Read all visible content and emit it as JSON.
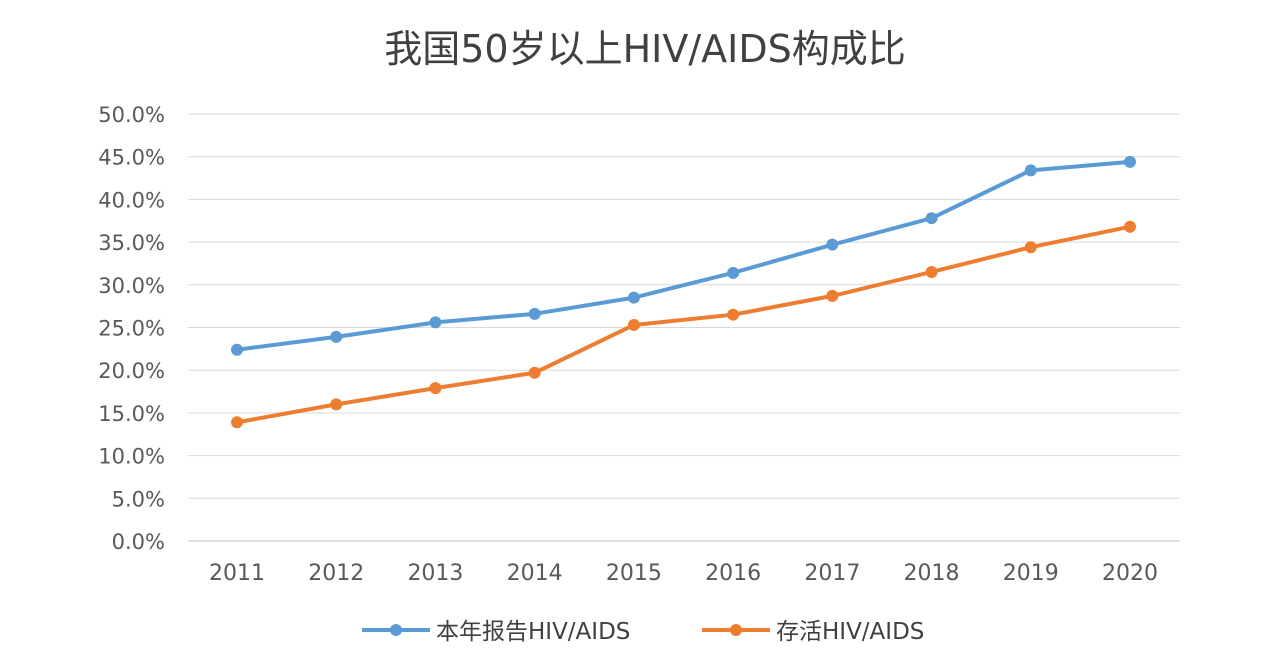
{
  "chart_data": {
    "type": "line",
    "title": "我国50岁以上HIV/AIDS构成比",
    "xlabel": "",
    "ylabel": "",
    "categories": [
      "2011",
      "2012",
      "2013",
      "2014",
      "2015",
      "2016",
      "2017",
      "2018",
      "2019",
      "2020"
    ],
    "ylim": [
      0,
      50
    ],
    "yticks": [
      "0.0%",
      "5.0%",
      "10.0%",
      "15.0%",
      "20.0%",
      "25.0%",
      "30.0%",
      "35.0%",
      "40.0%",
      "45.0%",
      "50.0%"
    ],
    "grid": true,
    "legend_position": "bottom",
    "series": [
      {
        "name": "本年报告HIV/AIDS",
        "color": "#5b9bd5",
        "values": [
          22.4,
          23.9,
          25.6,
          26.6,
          28.5,
          31.4,
          34.7,
          37.8,
          43.4,
          44.4
        ]
      },
      {
        "name": "存活HIV/AIDS",
        "color": "#ed7d31",
        "values": [
          13.9,
          16.0,
          17.9,
          19.7,
          25.3,
          26.5,
          28.7,
          31.5,
          34.4,
          36.8
        ]
      }
    ]
  }
}
